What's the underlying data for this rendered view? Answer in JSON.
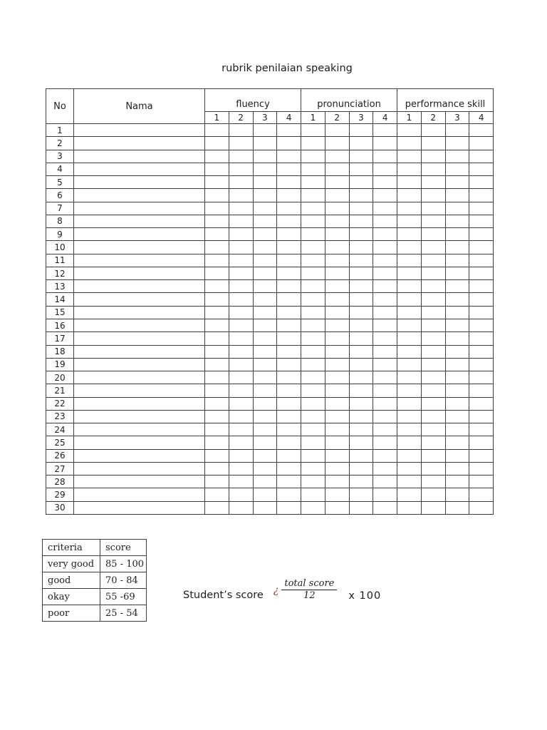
{
  "page": {
    "title": "rubrik penilaian speaking"
  },
  "main_table": {
    "no_header": "No",
    "nama_header": "Nama",
    "groups": [
      {
        "label": "fluency",
        "sub": [
          "1",
          "2",
          "3",
          "4"
        ]
      },
      {
        "label": "pronunciation",
        "sub": [
          "1",
          "2",
          "3",
          "4"
        ]
      },
      {
        "label": "performance skill",
        "sub": [
          "1",
          "2",
          "3",
          "4"
        ]
      }
    ],
    "rows": [
      "1",
      "2",
      "3",
      "4",
      "5",
      "6",
      "7",
      "8",
      "9",
      "10",
      "11",
      "12",
      "13",
      "14",
      "15",
      "16",
      "17",
      "18",
      "19",
      "20",
      "21",
      "22",
      "23",
      "24",
      "25",
      "26",
      "27",
      "28",
      "29",
      "30"
    ],
    "cells_per_row_empty": 13
  },
  "criteria_table": {
    "headers": [
      "criteria",
      "score"
    ],
    "rows": [
      {
        "criteria": "very good",
        "score": "85 - 100"
      },
      {
        "criteria": "good",
        "score": "70 - 84"
      },
      {
        "criteria": "okay",
        "score": "55 -69"
      },
      {
        "criteria": "poor",
        "score": "25 - 54"
      }
    ]
  },
  "formula": {
    "label": "Student’s score",
    "operator": "¿",
    "numerator": "total score",
    "denominator": "12",
    "suffix": "x 100"
  },
  "colors": {
    "operator_color": "#943634",
    "border_color": "#3d3d3d",
    "background": "#ffffff"
  }
}
